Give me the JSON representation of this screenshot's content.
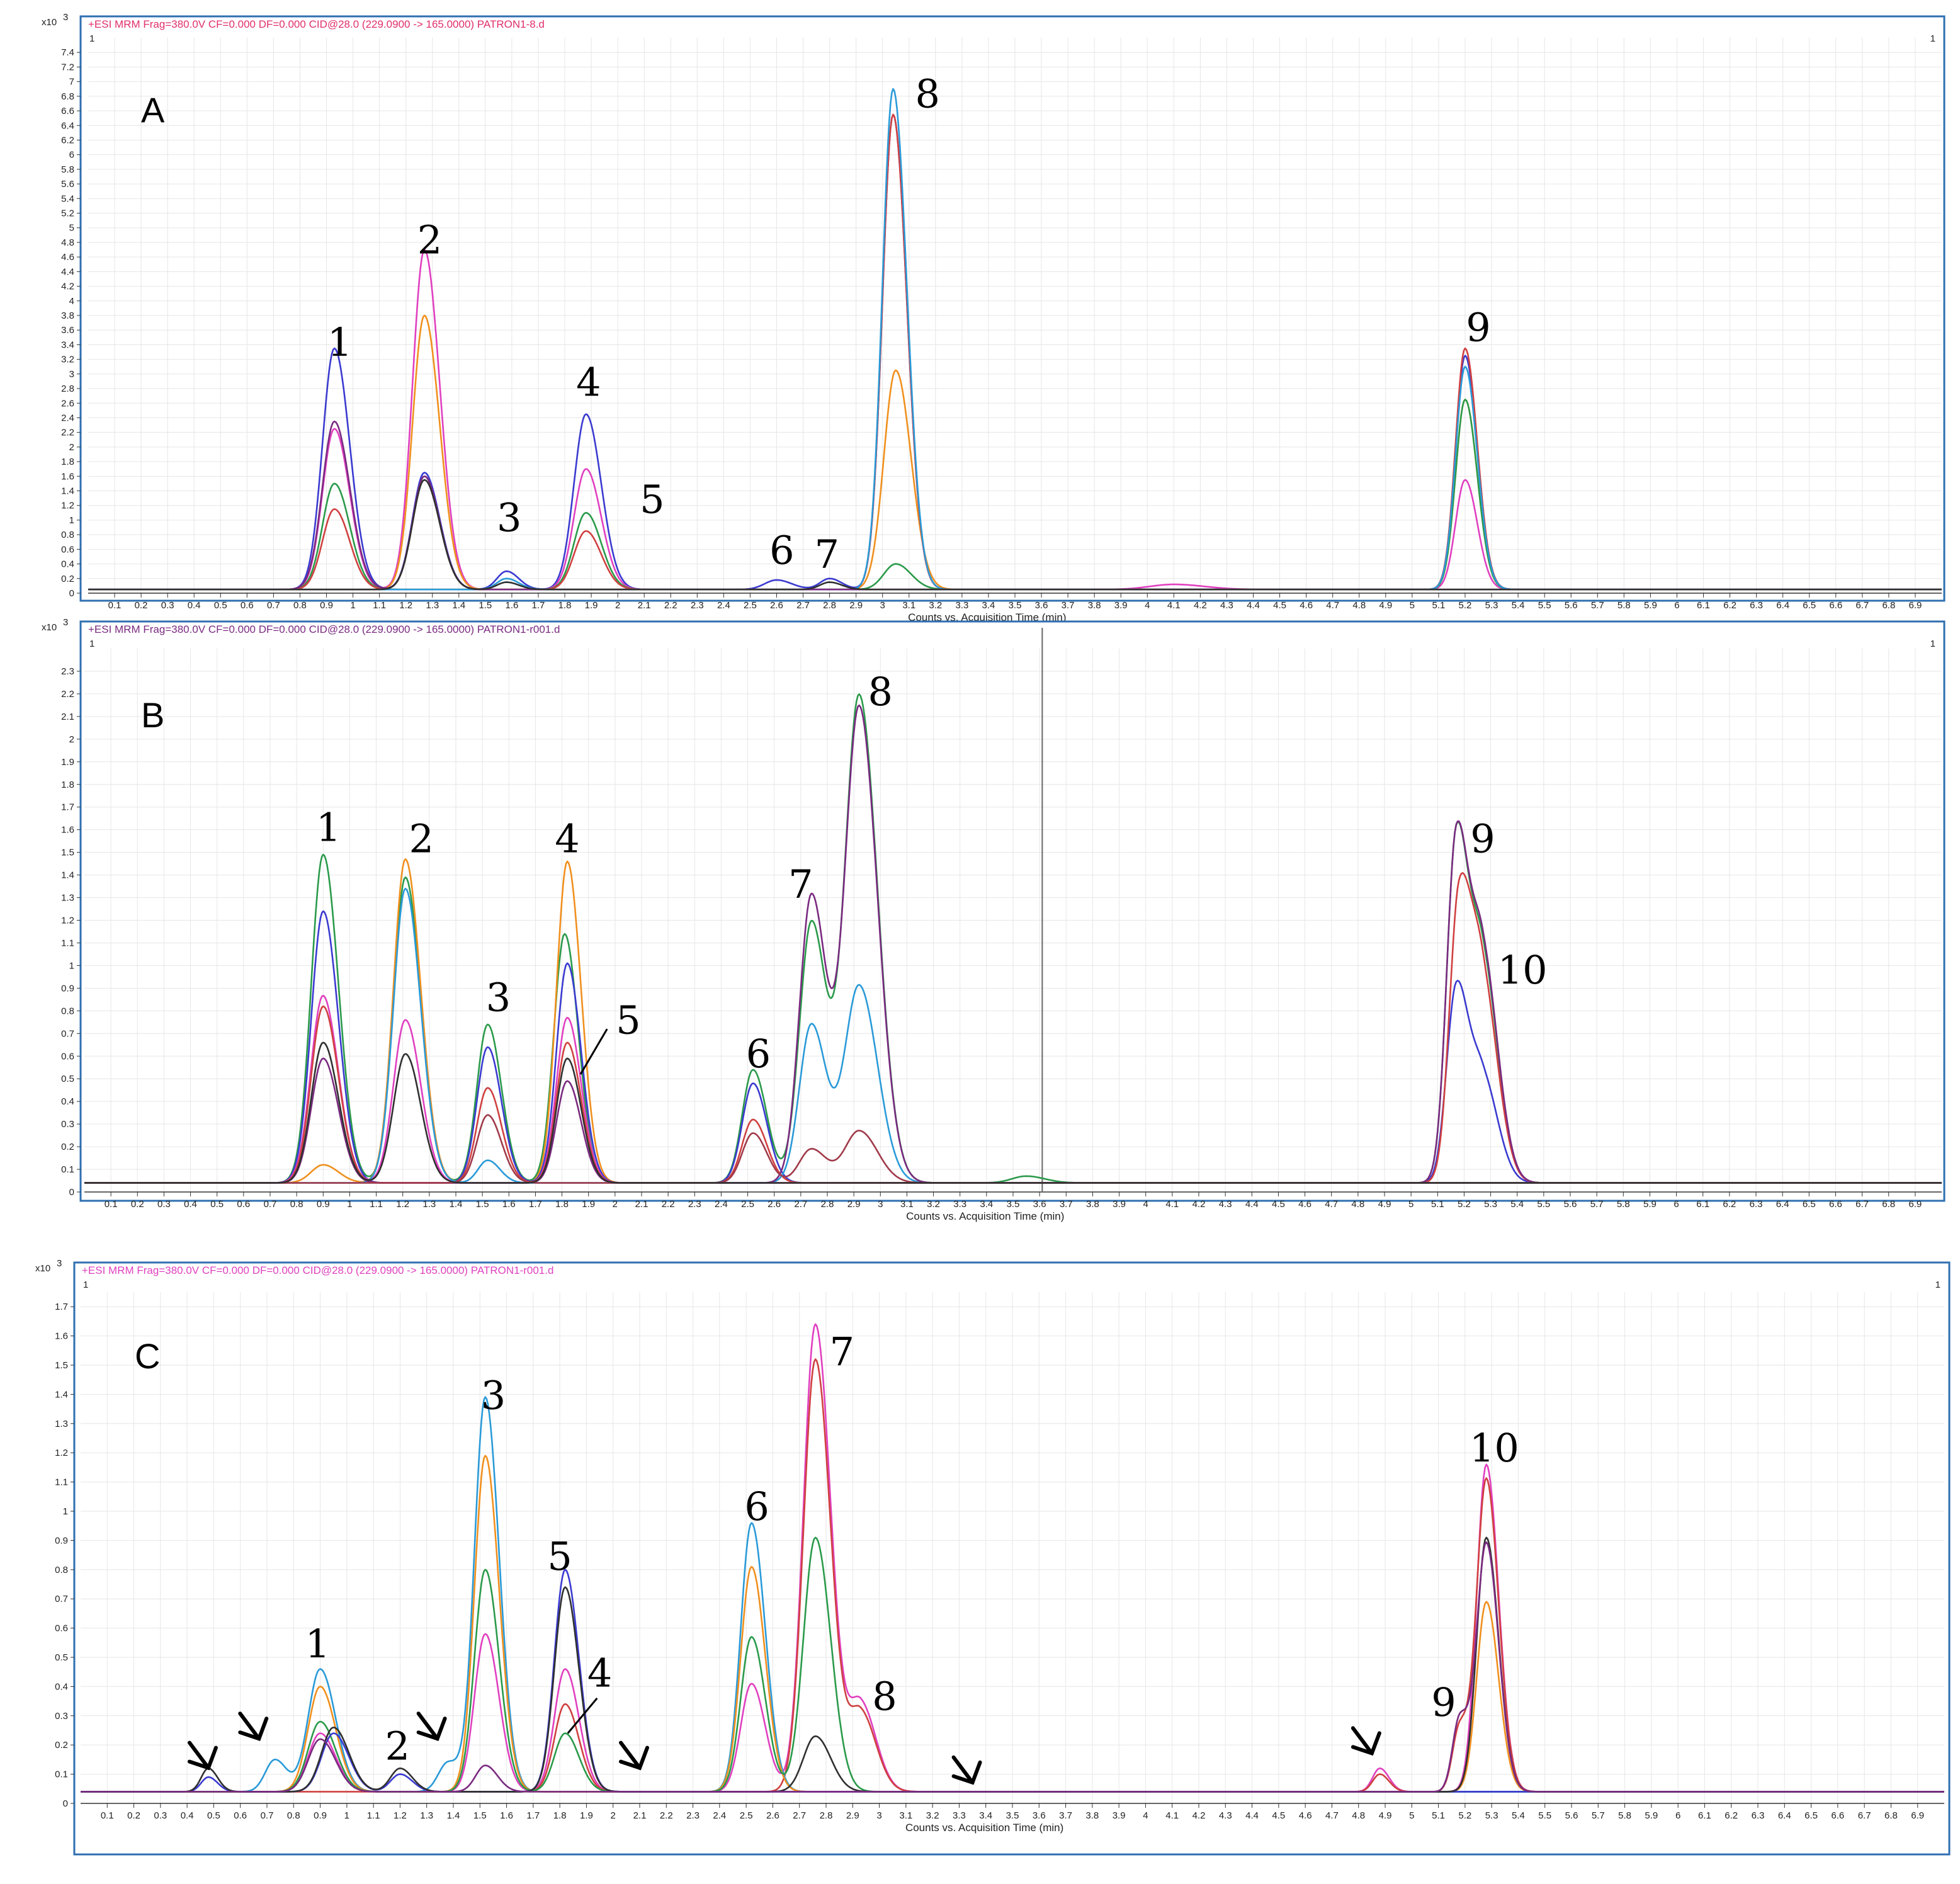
{
  "chart_data": [
    {
      "type": "line",
      "panel": "A",
      "header": "+ESI MRM Frag=380.0V CF=0.000 DF=0.000 CID@28.0 (229.0900 -> 165.0000) PATRON1-8.d",
      "header_color": "#e0306a",
      "corner_label": "1",
      "y_multiplier": "x10",
      "y_exponent": "3",
      "xlabel": "Counts vs. Acquisition Time (min)",
      "xlim": [
        0,
        7.0
      ],
      "ylim": [
        0,
        7.6
      ],
      "ytick_step": 0.2,
      "ymax_tick": 7.4,
      "baseline": 0.05,
      "cursor_x": null,
      "peak_labels": [
        {
          "text": "1",
          "x": 0.95,
          "y": 3.25
        },
        {
          "text": "2",
          "x": 1.29,
          "y": 4.65
        },
        {
          "text": "3",
          "x": 1.59,
          "y": 0.85
        },
        {
          "text": "4",
          "x": 1.89,
          "y": 2.7
        },
        {
          "text": "5",
          "x": 2.13,
          "y": 1.1
        },
        {
          "text": "6",
          "x": 2.62,
          "y": 0.4
        },
        {
          "text": "7",
          "x": 2.79,
          "y": 0.35
        },
        {
          "text": "8",
          "x": 3.17,
          "y": 6.65
        },
        {
          "text": "9",
          "x": 5.25,
          "y": 3.45
        }
      ],
      "arrows": [],
      "leaders": [],
      "series": [
        {
          "color": "#3a3ad0",
          "peaks": [
            [
              0.93,
              3.3,
              0.05
            ],
            [
              1.27,
              1.6,
              0.05
            ],
            [
              1.58,
              0.25,
              0.04
            ],
            [
              1.88,
              2.4,
              0.05
            ],
            [
              2.6,
              0.13,
              0.05
            ],
            [
              2.8,
              0.15,
              0.04
            ],
            [
              3.04,
              6.5,
              0.045
            ],
            [
              5.2,
              3.2,
              0.04
            ]
          ]
        },
        {
          "color": "#e040c0",
          "peaks": [
            [
              1.27,
              4.65,
              0.05
            ],
            [
              0.93,
              2.2,
              0.05
            ],
            [
              1.88,
              1.65,
              0.05
            ],
            [
              5.2,
              1.5,
              0.04
            ],
            [
              4.1,
              0.07,
              0.1
            ]
          ]
        },
        {
          "color": "#f0901e",
          "peaks": [
            [
              1.27,
              3.75,
              0.05
            ],
            [
              3.05,
              3.0,
              0.05
            ],
            [
              5.2,
              2.6,
              0.04
            ]
          ]
        },
        {
          "color": "#2a9a4a",
          "peaks": [
            [
              0.93,
              1.45,
              0.05
            ],
            [
              1.88,
              1.05,
              0.05
            ],
            [
              3.05,
              0.35,
              0.05
            ],
            [
              5.2,
              2.6,
              0.04
            ]
          ]
        },
        {
          "color": "#d04040",
          "peaks": [
            [
              0.93,
              1.1,
              0.05
            ],
            [
              1.88,
              0.8,
              0.05
            ],
            [
              3.04,
              6.5,
              0.045
            ],
            [
              5.2,
              3.3,
              0.04
            ]
          ]
        },
        {
          "color": "#2a9ad8",
          "peaks": [
            [
              3.04,
              6.85,
              0.045
            ],
            [
              5.2,
              3.05,
              0.04
            ],
            [
              1.58,
              0.15,
              0.04
            ]
          ]
        },
        {
          "color": "#7a2a80",
          "peaks": [
            [
              0.93,
              2.15,
              0.05
            ],
            [
              1.27,
              1.55,
              0.05
            ],
            [
              0.93,
              0.15,
              0.06
            ]
          ]
        },
        {
          "color": "#303030",
          "peaks": [
            [
              1.27,
              1.5,
              0.05
            ],
            [
              1.58,
              0.1,
              0.04
            ],
            [
              2.8,
              0.1,
              0.04
            ]
          ]
        }
      ]
    },
    {
      "type": "line",
      "panel": "B",
      "header": "+ESI MRM Frag=380.0V CF=0.000 DF=0.000 CID@28.0 (229.0900 -> 165.0000) PATRON1-r001.d",
      "header_color": "#7a2a80",
      "corner_label": "1",
      "y_multiplier": "x10",
      "y_exponent": "3",
      "xlabel": "Counts vs. Acquisition Time (min)",
      "xlim": [
        0,
        7.0
      ],
      "ylim": [
        0,
        2.4
      ],
      "ytick_step": 0.1,
      "ymax_tick": 2.3,
      "baseline": 0.04,
      "cursor_x": 3.61,
      "peak_labels": [
        {
          "text": "1",
          "x": 0.92,
          "y": 1.55
        },
        {
          "text": "2",
          "x": 1.27,
          "y": 1.5
        },
        {
          "text": "3",
          "x": 1.56,
          "y": 0.8
        },
        {
          "text": "4",
          "x": 1.82,
          "y": 1.5
        },
        {
          "text": "5",
          "x": 2.05,
          "y": 0.7
        },
        {
          "text": "6",
          "x": 2.54,
          "y": 0.55
        },
        {
          "text": "7",
          "x": 2.7,
          "y": 1.3
        },
        {
          "text": "8",
          "x": 3.0,
          "y": 2.15
        },
        {
          "text": "9",
          "x": 5.27,
          "y": 1.5
        },
        {
          "text": "10",
          "x": 5.42,
          "y": 0.92
        }
      ],
      "arrows": [],
      "leaders": [
        [
          1.97,
          0.72,
          1.87,
          0.52
        ]
      ],
      "series": [
        {
          "color": "#2a9a4a",
          "peaks": [
            [
              0.9,
              1.45,
              0.05
            ],
            [
              1.21,
              1.35,
              0.05
            ],
            [
              1.52,
              0.7,
              0.045
            ],
            [
              1.81,
              1.1,
              0.045
            ],
            [
              2.52,
              0.5,
              0.045
            ],
            [
              2.74,
              1.15,
              0.05
            ],
            [
              2.92,
              2.15,
              0.06
            ],
            [
              5.17,
              1.5,
              0.04
            ],
            [
              5.27,
              0.95,
              0.05
            ],
            [
              3.55,
              0.03,
              0.06
            ]
          ]
        },
        {
          "color": "#f0901e",
          "peaks": [
            [
              1.21,
              1.43,
              0.05
            ],
            [
              1.82,
              1.42,
              0.045
            ],
            [
              0.9,
              0.08,
              0.05
            ]
          ]
        },
        {
          "color": "#3a3ad0",
          "peaks": [
            [
              0.9,
              1.2,
              0.05
            ],
            [
              1.52,
              0.6,
              0.045
            ],
            [
              1.82,
              0.97,
              0.045
            ],
            [
              2.52,
              0.44,
              0.045
            ],
            [
              5.17,
              0.85,
              0.04
            ],
            [
              5.27,
              0.45,
              0.05
            ]
          ]
        },
        {
          "color": "#e040c0",
          "peaks": [
            [
              0.9,
              0.78,
              0.05
            ],
            [
              1.21,
              0.72,
              0.05
            ],
            [
              1.82,
              0.73,
              0.045
            ],
            [
              0.88,
              0.05,
              0.05
            ]
          ]
        },
        {
          "color": "#d04040",
          "peaks": [
            [
              0.9,
              0.78,
              0.05
            ],
            [
              1.52,
              0.42,
              0.045
            ],
            [
              1.82,
              0.62,
              0.045
            ],
            [
              2.52,
              0.28,
              0.045
            ],
            [
              5.18,
              1.22,
              0.04
            ],
            [
              5.27,
              0.85,
              0.05
            ]
          ]
        },
        {
          "color": "#2a9ad8",
          "peaks": [
            [
              2.74,
              0.7,
              0.05
            ],
            [
              2.92,
              0.87,
              0.06
            ],
            [
              1.52,
              0.1,
              0.04
            ],
            [
              1.21,
              1.3,
              0.05
            ]
          ]
        },
        {
          "color": "#7a2a80",
          "peaks": [
            [
              2.74,
              1.27,
              0.05
            ],
            [
              2.92,
              2.1,
              0.06
            ],
            [
              5.17,
              1.5,
              0.04
            ],
            [
              5.27,
              0.98,
              0.05
            ],
            [
              0.9,
              0.55,
              0.05
            ],
            [
              1.82,
              0.45,
              0.045
            ]
          ]
        },
        {
          "color": "#a03a4a",
          "peaks": [
            [
              1.52,
              0.3,
              0.045
            ],
            [
              2.52,
              0.22,
              0.045
            ],
            [
              2.74,
              0.15,
              0.05
            ],
            [
              2.92,
              0.23,
              0.06
            ]
          ]
        },
        {
          "color": "#303030",
          "peaks": [
            [
              1.21,
              0.57,
              0.05
            ],
            [
              1.82,
              0.55,
              0.045
            ],
            [
              0.9,
              0.62,
              0.05
            ]
          ]
        }
      ]
    },
    {
      "type": "line",
      "panel": "C",
      "header": "+ESI MRM Frag=380.0V CF=0.000 DF=0.000 CID@28.0 (229.0900 -> 165.0000) PATRON1-r001.d",
      "header_color": "#e040c0",
      "corner_label": "1",
      "y_multiplier": "x10",
      "y_exponent": "3",
      "xlabel": "Counts vs. Acquisition Time (min)",
      "xlim": [
        0,
        7.0
      ],
      "ylim": [
        0,
        1.75
      ],
      "ytick_step": 0.1,
      "ymax_tick": 1.7,
      "baseline": 0.04,
      "cursor_x": null,
      "peak_labels": [
        {
          "text": "1",
          "x": 0.89,
          "y": 0.5
        },
        {
          "text": "2",
          "x": 1.19,
          "y": 0.15
        },
        {
          "text": "3",
          "x": 1.55,
          "y": 1.35
        },
        {
          "text": "4",
          "x": 1.95,
          "y": 0.4
        },
        {
          "text": "5",
          "x": 1.8,
          "y": 0.8
        },
        {
          "text": "6",
          "x": 2.54,
          "y": 0.97
        },
        {
          "text": "7",
          "x": 2.86,
          "y": 1.5
        },
        {
          "text": "8",
          "x": 3.02,
          "y": 0.32
        },
        {
          "text": "9",
          "x": 5.12,
          "y": 0.3
        },
        {
          "text": "10",
          "x": 5.31,
          "y": 1.17
        }
      ],
      "arrows": [
        [
          0.48,
          0.1
        ],
        [
          0.67,
          0.2
        ],
        [
          1.34,
          0.2
        ],
        [
          2.1,
          0.1
        ],
        [
          3.35,
          0.05
        ],
        [
          4.85,
          0.15
        ]
      ],
      "leaders": [
        [
          1.94,
          0.36,
          1.83,
          0.24
        ]
      ],
      "series": [
        {
          "color": "#e040c0",
          "peaks": [
            [
              2.76,
              1.6,
              0.05
            ],
            [
              5.28,
              1.12,
              0.04
            ],
            [
              1.52,
              0.54,
              0.045
            ],
            [
              2.52,
              0.37,
              0.045
            ],
            [
              1.82,
              0.42,
              0.045
            ],
            [
              2.93,
              0.3,
              0.05
            ],
            [
              0.9,
              0.2,
              0.05
            ],
            [
              4.88,
              0.08,
              0.03
            ]
          ]
        },
        {
          "color": "#d04040",
          "peaks": [
            [
              2.76,
              1.48,
              0.05
            ],
            [
              5.28,
              1.07,
              0.04
            ],
            [
              2.93,
              0.27,
              0.05
            ],
            [
              1.82,
              0.3,
              0.045
            ],
            [
              4.88,
              0.06,
              0.03
            ],
            [
              5.18,
              0.22,
              0.03
            ]
          ]
        },
        {
          "color": "#2a9ad8",
          "peaks": [
            [
              1.52,
              1.35,
              0.045
            ],
            [
              2.52,
              0.92,
              0.045
            ],
            [
              0.9,
              0.42,
              0.05
            ],
            [
              0.73,
              0.11,
              0.04
            ],
            [
              1.38,
              0.1,
              0.04
            ]
          ]
        },
        {
          "color": "#f0901e",
          "peaks": [
            [
              1.52,
              1.15,
              0.045
            ],
            [
              2.52,
              0.77,
              0.045
            ],
            [
              5.28,
              0.65,
              0.04
            ],
            [
              0.9,
              0.36,
              0.05
            ]
          ]
        },
        {
          "color": "#2a9a4a",
          "peaks": [
            [
              1.52,
              0.76,
              0.045
            ],
            [
              2.52,
              0.53,
              0.045
            ],
            [
              2.76,
              0.87,
              0.05
            ],
            [
              0.9,
              0.24,
              0.05
            ],
            [
              1.82,
              0.2,
              0.045
            ]
          ]
        },
        {
          "color": "#3a3ad0",
          "peaks": [
            [
              1.82,
              0.76,
              0.045
            ],
            [
              0.95,
              0.2,
              0.05
            ],
            [
              0.48,
              0.05,
              0.03
            ],
            [
              1.2,
              0.06,
              0.04
            ]
          ]
        },
        {
          "color": "#303030",
          "peaks": [
            [
              1.82,
              0.7,
              0.045
            ],
            [
              0.95,
              0.22,
              0.05
            ],
            [
              2.76,
              0.19,
              0.05
            ],
            [
              5.28,
              0.87,
              0.04
            ],
            [
              1.2,
              0.08,
              0.04
            ],
            [
              0.48,
              0.08,
              0.03
            ]
          ]
        },
        {
          "color": "#7a2a80",
          "peaks": [
            [
              0.9,
              0.18,
              0.05
            ],
            [
              1.52,
              0.09,
              0.04
            ],
            [
              5.18,
              0.25,
              0.03
            ],
            [
              5.28,
              0.85,
              0.04
            ]
          ]
        }
      ]
    }
  ]
}
